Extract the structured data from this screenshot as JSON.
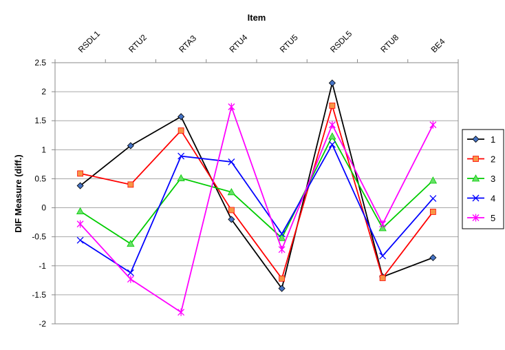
{
  "chart_data": {
    "type": "line",
    "xlabel": "Item",
    "ylabel": "DIF Measure (diff.)",
    "categories": [
      "RSDL1",
      "RTU2",
      "RTA3",
      "RTU4",
      "RTU5",
      "RSDL5",
      "RTU8",
      "BE4"
    ],
    "ylim": [
      -2,
      2.5
    ],
    "yticks": [
      "2.5",
      "2",
      "1.5",
      "1",
      "0.5",
      "0",
      "-0.5",
      "-1",
      "-1.5",
      "-2"
    ],
    "grid": true,
    "x_axis_position": "top",
    "legend_position": "right",
    "series": [
      {
        "name": "1",
        "color": "#000000",
        "marker_color": "#4472c4",
        "marker": "diamond",
        "values": [
          0.38,
          1.07,
          1.57,
          -0.2,
          -1.39,
          2.15,
          -1.19,
          -0.86
        ]
      },
      {
        "name": "2",
        "color": "#ff0000",
        "marker_color": "#f79646",
        "marker": "square",
        "values": [
          0.59,
          0.4,
          1.33,
          -0.04,
          -1.22,
          1.76,
          -1.21,
          -0.07
        ]
      },
      {
        "name": "3",
        "color": "#00cc00",
        "marker_color": "#66e066",
        "marker": "triangle",
        "values": [
          -0.06,
          -0.62,
          0.51,
          0.27,
          -0.52,
          1.23,
          -0.35,
          0.47
        ]
      },
      {
        "name": "4",
        "color": "#0000ff",
        "marker_color": "#0000ff",
        "marker": "x",
        "values": [
          -0.56,
          -1.12,
          0.89,
          0.79,
          -0.45,
          1.09,
          -0.83,
          0.16
        ]
      },
      {
        "name": "5",
        "color": "#ff00ff",
        "marker_color": "#ff00ff",
        "marker": "star",
        "values": [
          -0.28,
          -1.23,
          -1.8,
          1.74,
          -0.72,
          1.43,
          -0.28,
          1.43
        ]
      }
    ]
  }
}
